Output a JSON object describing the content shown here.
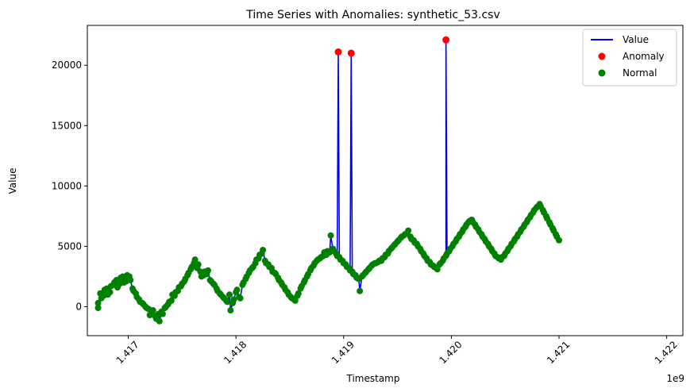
{
  "chart_data": {
    "type": "line",
    "title": "Time Series with Anomalies: synthetic_53.csv",
    "xlabel": "Timestamp",
    "ylabel": "Value",
    "x_offset_label": "1e9",
    "xlim": [
      1.41662,
      1.42215
    ],
    "ylim": [
      -2400,
      23300
    ],
    "x_ticks": [
      {
        "value": 1.417,
        "label": "1.417"
      },
      {
        "value": 1.418,
        "label": "1.418"
      },
      {
        "value": 1.419,
        "label": "1.419"
      },
      {
        "value": 1.42,
        "label": "1.420"
      },
      {
        "value": 1.421,
        "label": "1.421"
      },
      {
        "value": 1.422,
        "label": "1.422"
      }
    ],
    "y_ticks": [
      {
        "value": 0,
        "label": "0"
      },
      {
        "value": 5000,
        "label": "5000"
      },
      {
        "value": 10000,
        "label": "10000"
      },
      {
        "value": 15000,
        "label": "15000"
      },
      {
        "value": 20000,
        "label": "20000"
      }
    ],
    "legend": {
      "placement": "top-right",
      "entries": [
        {
          "label": "Value",
          "kind": "line",
          "color": "#0000ff"
        },
        {
          "label": "Anomaly",
          "kind": "marker",
          "color": "#ff0000"
        },
        {
          "label": "Normal",
          "kind": "marker",
          "color": "#008000"
        }
      ]
    },
    "series": [
      {
        "name": "Value",
        "color": "#0000ff",
        "points": [
          [
            1.41672,
            300
          ],
          [
            1.41674,
            1100
          ],
          [
            1.41677,
            900
          ],
          [
            1.4168,
            1500
          ],
          [
            1.41683,
            1200
          ],
          [
            1.41686,
            1800
          ],
          [
            1.41689,
            2200
          ],
          [
            1.41692,
            1900
          ],
          [
            1.41695,
            2500
          ],
          [
            1.41698,
            2100
          ],
          [
            1.41701,
            2500
          ],
          [
            1.41704,
            1500
          ],
          [
            1.41707,
            1100
          ],
          [
            1.4171,
            600
          ],
          [
            1.41713,
            300
          ],
          [
            1.41716,
            0
          ],
          [
            1.41719,
            -200
          ],
          [
            1.41722,
            -500
          ],
          [
            1.41725,
            -800
          ],
          [
            1.41728,
            -600
          ],
          [
            1.41731,
            -400
          ],
          [
            1.41734,
            -100
          ],
          [
            1.41737,
            200
          ],
          [
            1.4174,
            500
          ],
          [
            1.41743,
            900
          ],
          [
            1.41746,
            1300
          ],
          [
            1.41749,
            1700
          ],
          [
            1.41752,
            2100
          ],
          [
            1.41755,
            2600
          ],
          [
            1.41758,
            3100
          ],
          [
            1.41761,
            3600
          ],
          [
            1.41764,
            3200
          ],
          [
            1.41767,
            2900
          ],
          [
            1.4177,
            2600
          ],
          [
            1.41773,
            2700
          ],
          [
            1.41776,
            2200
          ],
          [
            1.41779,
            1900
          ],
          [
            1.41782,
            1500
          ],
          [
            1.41785,
            1100
          ],
          [
            1.41788,
            800
          ],
          [
            1.41791,
            500
          ],
          [
            1.41794,
            1000
          ],
          [
            1.41797,
            300
          ],
          [
            1.418,
            1200
          ],
          [
            1.41803,
            800
          ],
          [
            1.41806,
            1800
          ],
          [
            1.41809,
            2300
          ],
          [
            1.41812,
            2800
          ],
          [
            1.41815,
            3200
          ],
          [
            1.41818,
            3600
          ],
          [
            1.41821,
            4000
          ],
          [
            1.41824,
            4400
          ],
          [
            1.41827,
            3800
          ],
          [
            1.4183,
            3500
          ],
          [
            1.41833,
            3200
          ],
          [
            1.41836,
            2800
          ],
          [
            1.41839,
            2400
          ],
          [
            1.41842,
            2000
          ],
          [
            1.41845,
            1600
          ],
          [
            1.41848,
            1200
          ],
          [
            1.41851,
            800
          ],
          [
            1.41854,
            600
          ],
          [
            1.41857,
            900
          ],
          [
            1.4186,
            1500
          ],
          [
            1.41863,
            2000
          ],
          [
            1.41866,
            2500
          ],
          [
            1.41869,
            3000
          ],
          [
            1.41872,
            3400
          ],
          [
            1.41875,
            3800
          ],
          [
            1.41878,
            4000
          ],
          [
            1.41881,
            4200
          ],
          [
            1.41884,
            4300
          ],
          [
            1.41887,
            4500
          ],
          [
            1.4189,
            4800
          ],
          [
            1.41893,
            4400
          ],
          [
            1.41896,
            4100
          ],
          [
            1.41899,
            3800
          ],
          [
            1.41902,
            3500
          ],
          [
            1.41905,
            3200
          ],
          [
            1.41908,
            2900
          ],
          [
            1.41911,
            2600
          ],
          [
            1.41914,
            2300
          ],
          [
            1.41917,
            2500
          ],
          [
            1.4192,
            2800
          ],
          [
            1.41923,
            3100
          ],
          [
            1.41926,
            3400
          ],
          [
            1.41929,
            3600
          ],
          [
            1.41932,
            3700
          ],
          [
            1.41935,
            3800
          ],
          [
            1.41938,
            4100
          ],
          [
            1.41941,
            4400
          ],
          [
            1.41944,
            4800
          ],
          [
            1.41947,
            5100
          ],
          [
            1.4195,
            5400
          ],
          [
            1.41953,
            5700
          ],
          [
            1.41956,
            5900
          ],
          [
            1.41959,
            6100
          ],
          [
            1.41962,
            5800
          ],
          [
            1.41965,
            5500
          ],
          [
            1.41968,
            5200
          ],
          [
            1.41971,
            4800
          ],
          [
            1.41974,
            4400
          ],
          [
            1.41977,
            4000
          ],
          [
            1.4198,
            3700
          ],
          [
            1.41983,
            3400
          ],
          [
            1.41986,
            3200
          ],
          [
            1.41989,
            3500
          ],
          [
            1.41992,
            3800
          ],
          [
            1.41995,
            4200
          ],
          [
            1.41998,
            4600
          ],
          [
            1.42001,
            5000
          ],
          [
            1.42004,
            5400
          ],
          [
            1.42007,
            5800
          ],
          [
            1.4201,
            6200
          ],
          [
            1.42013,
            6600
          ],
          [
            1.42016,
            7000
          ],
          [
            1.42019,
            7200
          ],
          [
            1.42022,
            6800
          ],
          [
            1.42025,
            6400
          ],
          [
            1.42028,
            6000
          ],
          [
            1.42031,
            5600
          ],
          [
            1.42034,
            5200
          ],
          [
            1.42037,
            4800
          ],
          [
            1.4204,
            4400
          ],
          [
            1.42043,
            4100
          ],
          [
            1.42046,
            3900
          ],
          [
            1.42049,
            4200
          ],
          [
            1.42052,
            4600
          ],
          [
            1.42055,
            5000
          ],
          [
            1.42058,
            5400
          ],
          [
            1.42061,
            5800
          ],
          [
            1.42064,
            6200
          ],
          [
            1.42067,
            6600
          ],
          [
            1.4207,
            7000
          ],
          [
            1.42073,
            7400
          ],
          [
            1.42076,
            7800
          ],
          [
            1.42079,
            8200
          ],
          [
            1.42082,
            8500
          ],
          [
            1.42085,
            8000
          ],
          [
            1.42088,
            7500
          ],
          [
            1.42091,
            7000
          ],
          [
            1.42094,
            6500
          ],
          [
            1.42097,
            6000
          ],
          [
            1.421,
            5500
          ]
        ]
      },
      {
        "name": "Value",
        "color": "#0000ff",
        "points": [
          [
            1.41672,
            -100
          ],
          [
            1.41675,
            700
          ],
          [
            1.41678,
            1400
          ],
          [
            1.41681,
            1000
          ],
          [
            1.41684,
            1700
          ],
          [
            1.41687,
            2000
          ],
          [
            1.4169,
            1600
          ],
          [
            1.41693,
            2400
          ],
          [
            1.41696,
            2000
          ],
          [
            1.41699,
            2600
          ],
          [
            1.41702,
            2200
          ],
          [
            1.41705,
            1300
          ],
          [
            1.41708,
            800
          ],
          [
            1.41711,
            400
          ],
          [
            1.41714,
            200
          ],
          [
            1.41717,
            -100
          ],
          [
            1.4172,
            -700
          ],
          [
            1.41723,
            -300
          ],
          [
            1.41726,
            -1000
          ],
          [
            1.41729,
            -1200
          ],
          [
            1.41732,
            -600
          ],
          [
            1.41735,
            0
          ],
          [
            1.41738,
            400
          ],
          [
            1.41741,
            1000
          ],
          [
            1.41744,
            1200
          ],
          [
            1.41747,
            1600
          ],
          [
            1.4175,
            1900
          ],
          [
            1.41753,
            2300
          ],
          [
            1.41756,
            2800
          ],
          [
            1.41759,
            3300
          ],
          [
            1.41762,
            3900
          ],
          [
            1.41765,
            3500
          ],
          [
            1.41768,
            2500
          ],
          [
            1.41771,
            2900
          ],
          [
            1.41774,
            3000
          ],
          [
            1.41777,
            2100
          ],
          [
            1.4178,
            1800
          ],
          [
            1.41783,
            1300
          ],
          [
            1.41786,
            1000
          ],
          [
            1.41789,
            700
          ],
          [
            1.41792,
            400
          ],
          [
            1.41795,
            -300
          ],
          [
            1.41798,
            600
          ],
          [
            1.41801,
            1400
          ],
          [
            1.41804,
            700
          ],
          [
            1.41807,
            2000
          ],
          [
            1.4181,
            2500
          ],
          [
            1.41813,
            3000
          ],
          [
            1.41816,
            3300
          ],
          [
            1.41819,
            3900
          ],
          [
            1.41822,
            4300
          ],
          [
            1.41825,
            4700
          ],
          [
            1.41828,
            3600
          ],
          [
            1.41831,
            3300
          ],
          [
            1.41834,
            2900
          ],
          [
            1.41837,
            2700
          ],
          [
            1.4184,
            2200
          ],
          [
            1.41843,
            1800
          ],
          [
            1.41846,
            1400
          ],
          [
            1.41849,
            1000
          ],
          [
            1.41852,
            700
          ],
          [
            1.41855,
            500
          ],
          [
            1.41858,
            1100
          ],
          [
            1.41861,
            1700
          ],
          [
            1.41864,
            2200
          ],
          [
            1.41867,
            2700
          ],
          [
            1.4187,
            3200
          ],
          [
            1.41873,
            3600
          ],
          [
            1.41876,
            3900
          ],
          [
            1.41879,
            4100
          ],
          [
            1.41882,
            4500
          ],
          [
            1.41885,
            4600
          ],
          [
            1.41888,
            5900
          ],
          [
            1.41891,
            4600
          ],
          [
            1.41894,
            4200
          ],
          [
            1.41897,
            3900
          ],
          [
            1.419,
            3600
          ],
          [
            1.41903,
            3300
          ],
          [
            1.41906,
            3000
          ],
          [
            1.41909,
            2700
          ],
          [
            1.41912,
            2400
          ],
          [
            1.41915,
            1300
          ],
          [
            1.41918,
            2600
          ],
          [
            1.41921,
            2900
          ],
          [
            1.41924,
            3200
          ],
          [
            1.41927,
            3500
          ],
          [
            1.4193,
            3600
          ],
          [
            1.41933,
            3800
          ],
          [
            1.41936,
            4000
          ],
          [
            1.41939,
            4300
          ],
          [
            1.41942,
            4600
          ],
          [
            1.41945,
            4900
          ],
          [
            1.41948,
            5200
          ],
          [
            1.41951,
            5500
          ],
          [
            1.41954,
            5800
          ],
          [
            1.41957,
            6000
          ],
          [
            1.4196,
            6300
          ],
          [
            1.41963,
            5600
          ],
          [
            1.41966,
            5300
          ],
          [
            1.41969,
            5000
          ],
          [
            1.41972,
            4600
          ],
          [
            1.41975,
            4200
          ],
          [
            1.41978,
            3800
          ],
          [
            1.41981,
            3500
          ],
          [
            1.41984,
            3300
          ],
          [
            1.41987,
            3100
          ],
          [
            1.4199,
            3600
          ],
          [
            1.41993,
            4000
          ],
          [
            1.41996,
            4400
          ],
          [
            1.41999,
            4800
          ],
          [
            1.42002,
            5200
          ],
          [
            1.42005,
            5600
          ],
          [
            1.42008,
            6000
          ],
          [
            1.42011,
            6400
          ],
          [
            1.42014,
            6800
          ],
          [
            1.42017,
            7100
          ],
          [
            1.4202,
            7000
          ],
          [
            1.42023,
            6600
          ],
          [
            1.42026,
            6200
          ],
          [
            1.42029,
            5800
          ],
          [
            1.42032,
            5400
          ],
          [
            1.42035,
            5000
          ],
          [
            1.42038,
            4600
          ],
          [
            1.42041,
            4200
          ],
          [
            1.42044,
            4000
          ],
          [
            1.42047,
            4100
          ],
          [
            1.4205,
            4400
          ],
          [
            1.42053,
            4800
          ],
          [
            1.42056,
            5200
          ],
          [
            1.42059,
            5600
          ],
          [
            1.42062,
            6000
          ],
          [
            1.42065,
            6400
          ],
          [
            1.42068,
            6800
          ],
          [
            1.42071,
            7200
          ],
          [
            1.42074,
            7600
          ],
          [
            1.42077,
            8000
          ],
          [
            1.4208,
            8300
          ],
          [
            1.42083,
            8300
          ],
          [
            1.42086,
            7800
          ],
          [
            1.42089,
            7300
          ],
          [
            1.42092,
            6800
          ],
          [
            1.42095,
            6300
          ],
          [
            1.42098,
            5800
          ]
        ]
      }
    ],
    "anomalies": [
      {
        "x": 1.41895,
        "y": 21100
      },
      {
        "x": 1.41907,
        "y": 21000
      },
      {
        "x": 1.41995,
        "y": 22100
      }
    ]
  }
}
